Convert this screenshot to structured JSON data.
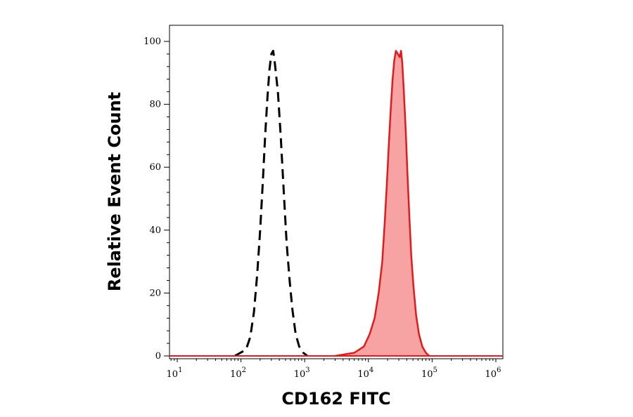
{
  "chart_data": {
    "type": "area",
    "title": "",
    "xlabel": "CD162 FITC",
    "ylabel": "Relative Event Count",
    "x_scale": "log",
    "xlim": [
      5,
      1000000
    ],
    "ylim": [
      0,
      100
    ],
    "x_ticks": [
      {
        "value": 10,
        "base": "10",
        "exp": "1"
      },
      {
        "value": 100,
        "base": "10",
        "exp": "2"
      },
      {
        "value": 1000,
        "base": "10",
        "exp": "3"
      },
      {
        "value": 10000,
        "base": "10",
        "exp": "4"
      },
      {
        "value": 100000,
        "base": "10",
        "exp": "5"
      },
      {
        "value": 1000000,
        "base": "10",
        "exp": "6"
      }
    ],
    "y_ticks": [
      {
        "value": 0,
        "label": "0"
      },
      {
        "value": 20,
        "label": "20"
      },
      {
        "value": 40,
        "label": "40"
      },
      {
        "value": 60,
        "label": "60"
      },
      {
        "value": 80,
        "label": "80"
      },
      {
        "value": 100,
        "label": "100"
      }
    ],
    "grid": false,
    "legend": "none",
    "series": [
      {
        "style": "dashed",
        "color": "#000000",
        "fill": "none",
        "points": [
          [
            80,
            0
          ],
          [
            120,
            2
          ],
          [
            140,
            6
          ],
          [
            160,
            14
          ],
          [
            180,
            26
          ],
          [
            200,
            40
          ],
          [
            220,
            55
          ],
          [
            240,
            70
          ],
          [
            260,
            82
          ],
          [
            280,
            91
          ],
          [
            300,
            96
          ],
          [
            320,
            97
          ],
          [
            340,
            93
          ],
          [
            380,
            84
          ],
          [
            420,
            70
          ],
          [
            470,
            52
          ],
          [
            520,
            36
          ],
          [
            580,
            24
          ],
          [
            640,
            15
          ],
          [
            720,
            7
          ],
          [
            820,
            3
          ],
          [
            950,
            1
          ],
          [
            1100,
            0
          ]
        ]
      },
      {
        "style": "solid",
        "color": "#e11b1b",
        "fill": "#f7a3a3",
        "points": [
          [
            3000,
            0
          ],
          [
            6000,
            1
          ],
          [
            8500,
            3
          ],
          [
            10500,
            7
          ],
          [
            12500,
            12
          ],
          [
            14500,
            20
          ],
          [
            16500,
            30
          ],
          [
            18000,
            42
          ],
          [
            19500,
            55
          ],
          [
            21000,
            68
          ],
          [
            22500,
            79
          ],
          [
            24000,
            88
          ],
          [
            25500,
            94
          ],
          [
            27000,
            97
          ],
          [
            29000,
            96
          ],
          [
            31000,
            95
          ],
          [
            32500,
            97
          ],
          [
            34000,
            93
          ],
          [
            36000,
            84
          ],
          [
            38500,
            72
          ],
          [
            41000,
            58
          ],
          [
            44000,
            44
          ],
          [
            47000,
            32
          ],
          [
            51000,
            22
          ],
          [
            56000,
            13
          ],
          [
            62000,
            7
          ],
          [
            70000,
            3
          ],
          [
            80000,
            1
          ],
          [
            90000,
            0
          ]
        ]
      }
    ]
  }
}
